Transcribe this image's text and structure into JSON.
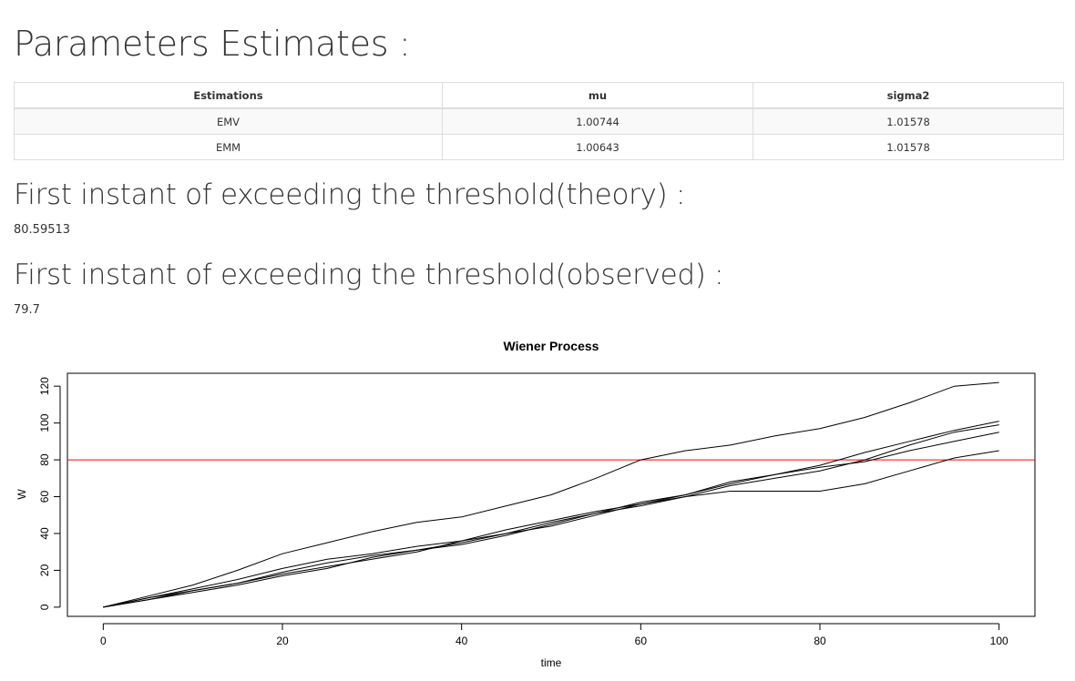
{
  "page": {
    "heading": "Parameters Estimates :",
    "table": {
      "headers": [
        "Estimations",
        "mu",
        "sigma2"
      ],
      "rows": [
        [
          "EMV",
          "1.00744",
          "1.01578"
        ],
        [
          "EMM",
          "1.00643",
          "1.01578"
        ]
      ]
    },
    "theory": {
      "heading": "First instant of exceeding the threshold(theory) :",
      "value": "80.59513"
    },
    "observed": {
      "heading": "First instant of exceeding the threshold(observed) :",
      "value": "79.7"
    }
  },
  "chart_data": {
    "type": "line",
    "title": "Wiener Process",
    "xlabel": "time",
    "ylabel": "W",
    "xlim": [
      -4,
      104
    ],
    "ylim": [
      -5,
      127
    ],
    "xticks": [
      0,
      20,
      40,
      60,
      80,
      100
    ],
    "yticks": [
      0,
      20,
      40,
      60,
      80,
      100,
      120
    ],
    "threshold": {
      "value": 80,
      "color": "#ff0000"
    },
    "line_color": "#000000",
    "x": [
      0,
      5,
      10,
      15,
      20,
      25,
      30,
      35,
      40,
      45,
      50,
      55,
      60,
      65,
      70,
      75,
      80,
      85,
      90,
      95,
      100
    ],
    "series": [
      {
        "values": [
          0,
          6,
          12,
          20,
          29,
          35,
          41,
          46,
          49,
          55,
          61,
          70,
          80,
          85,
          88,
          93,
          97,
          103,
          111,
          120,
          122
        ]
      },
      {
        "values": [
          0,
          5,
          10,
          15,
          21,
          26,
          29,
          33,
          36,
          40,
          46,
          51,
          57,
          61,
          67,
          72,
          77,
          84,
          90,
          96,
          101
        ]
      },
      {
        "values": [
          0,
          4,
          9,
          13,
          19,
          24,
          28,
          31,
          34,
          39,
          45,
          51,
          55,
          60,
          66,
          70,
          74,
          80,
          88,
          95,
          99
        ]
      },
      {
        "values": [
          0,
          4,
          8,
          12,
          17,
          21,
          27,
          31,
          35,
          40,
          44,
          50,
          56,
          61,
          68,
          72,
          76,
          79,
          85,
          90,
          95
        ]
      },
      {
        "values": [
          0,
          5,
          9,
          13,
          18,
          22,
          26,
          30,
          36,
          42,
          47,
          52,
          56,
          60,
          63,
          63,
          63,
          67,
          74,
          81,
          85
        ]
      }
    ]
  }
}
